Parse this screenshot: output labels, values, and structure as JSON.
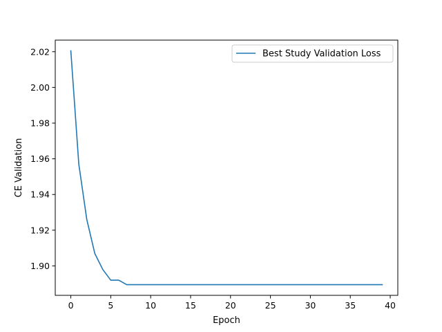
{
  "chart_data": {
    "type": "line",
    "title": "",
    "xlabel": "Epoch",
    "ylabel": "CE Validation",
    "xlim": [
      -1.95,
      40.95
    ],
    "ylim": [
      1.8835,
      2.0265
    ],
    "x_ticks": [
      0,
      5,
      10,
      15,
      20,
      25,
      30,
      35,
      40
    ],
    "y_ticks": [
      1.9,
      1.92,
      1.94,
      1.96,
      1.98,
      2.0,
      2.02
    ],
    "x_tick_labels": [
      "0",
      "5",
      "10",
      "15",
      "20",
      "25",
      "30",
      "35",
      "40"
    ],
    "y_tick_labels": [
      "1.90",
      "1.92",
      "1.94",
      "1.96",
      "1.98",
      "2.00",
      "2.02"
    ],
    "grid": false,
    "legend_position": "upper-right",
    "series": [
      {
        "name": "Best Study Validation Loss",
        "color": "#1f77b4",
        "x": [
          0,
          1,
          2,
          3,
          4,
          5,
          6,
          7,
          8,
          9,
          10,
          11,
          12,
          13,
          14,
          15,
          16,
          17,
          18,
          19,
          20,
          21,
          22,
          23,
          24,
          25,
          26,
          27,
          28,
          29,
          30,
          31,
          32,
          33,
          34,
          35,
          36,
          37,
          38,
          39
        ],
        "y": [
          2.0205,
          1.957,
          1.926,
          1.907,
          1.898,
          1.892,
          1.892,
          1.8895,
          1.8895,
          1.8895,
          1.8895,
          1.8895,
          1.8895,
          1.8895,
          1.8895,
          1.8895,
          1.8895,
          1.8895,
          1.8895,
          1.8895,
          1.8895,
          1.8895,
          1.8895,
          1.8895,
          1.8895,
          1.8895,
          1.8895,
          1.8895,
          1.8895,
          1.8895,
          1.8895,
          1.8895,
          1.8895,
          1.8895,
          1.8895,
          1.8895,
          1.8895,
          1.8895,
          1.8895,
          1.8895
        ]
      }
    ]
  }
}
